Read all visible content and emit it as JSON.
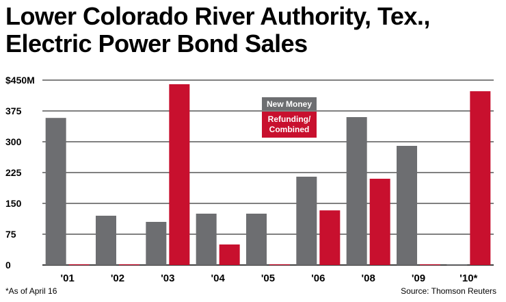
{
  "title_line1": "Lower Colorado River Authority, Tex.,",
  "title_line2": "Electric Power Bond Sales",
  "footnote": "*As of April 16",
  "source": "Source: Thomson Reuters",
  "colors": {
    "new_money": "#6d6e71",
    "refunding": "#c8102e",
    "grid": "#000000"
  },
  "chart_data": {
    "type": "bar",
    "categories": [
      "'01",
      "'02",
      "'03",
      "'04",
      "'05",
      "'06",
      "'08",
      "'09",
      "'10*"
    ],
    "series": [
      {
        "name": "New Money",
        "values": [
          358,
          120,
          105,
          125,
          125,
          215,
          360,
          290,
          0
        ]
      },
      {
        "name": "Refunding/ Combined",
        "values": [
          0,
          0,
          440,
          50,
          0,
          133,
          210,
          0,
          423
        ]
      }
    ],
    "y_ticks": [
      0,
      75,
      150,
      225,
      300,
      375,
      450
    ],
    "y_tick_labels": [
      "0",
      "75",
      "150",
      "225",
      "300",
      "375",
      "$450M"
    ],
    "ylim": [
      0,
      450
    ],
    "grid": true,
    "legend_position": "top-center"
  }
}
